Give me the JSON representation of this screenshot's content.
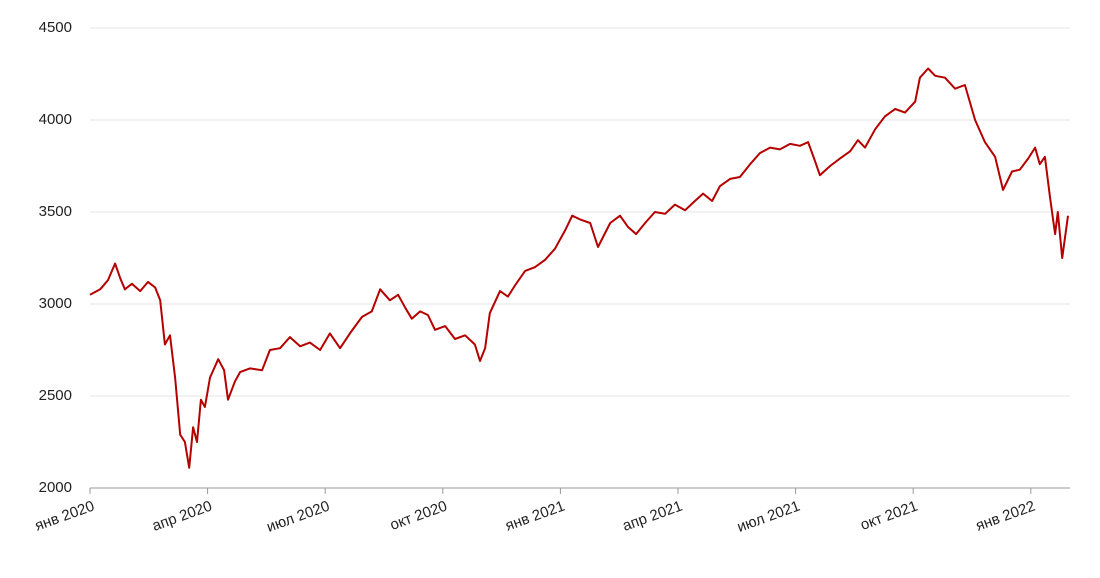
{
  "chart_data": {
    "type": "line",
    "x": [
      0,
      0.26,
      0.46,
      0.64,
      0.77,
      0.89,
      1.07,
      1.28,
      1.48,
      1.66,
      1.79,
      1.91,
      2.04,
      2.17,
      2.3,
      2.42,
      2.53,
      2.63,
      2.73,
      2.83,
      2.93,
      3.06,
      3.27,
      3.42,
      3.52,
      3.7,
      3.83,
      4.08,
      4.39,
      4.59,
      4.85,
      5.1,
      5.36,
      5.61,
      5.87,
      6.12,
      6.38,
      6.63,
      6.94,
      7.19,
      7.4,
      7.65,
      7.86,
      8.04,
      8.21,
      8.42,
      8.62,
      8.8,
      9.06,
      9.31,
      9.57,
      9.82,
      9.95,
      10.08,
      10.2,
      10.46,
      10.66,
      10.84,
      11.1,
      11.35,
      11.61,
      11.86,
      12.12,
      12.3,
      12.5,
      12.76,
      12.96,
      13.27,
      13.52,
      13.72,
      13.93,
      14.16,
      14.41,
      14.67,
      14.92,
      15.18,
      15.43,
      15.64,
      15.87,
      16.07,
      16.33,
      16.58,
      16.84,
      17.09,
      17.35,
      17.6,
      17.86,
      18.11,
      18.32,
      18.49,
      18.62,
      18.88,
      19.13,
      19.39,
      19.59,
      19.77,
      20.03,
      20.28,
      20.54,
      20.79,
      21.05,
      21.17,
      21.38,
      21.56,
      21.81,
      22.07,
      22.32,
      22.58,
      22.83,
      23.09,
      23.29,
      23.52,
      23.72,
      23.93,
      24.11,
      24.23,
      24.36,
      24.49,
      24.62,
      24.69,
      24.8,
      24.95
    ],
    "series": [
      {
        "color": "#b50000",
        "values": [
          3050,
          3080,
          3130,
          3220,
          3140,
          3080,
          3110,
          3070,
          3120,
          3090,
          3020,
          2780,
          2830,
          2600,
          2290,
          2250,
          2110,
          2330,
          2250,
          2480,
          2440,
          2600,
          2700,
          2640,
          2480,
          2580,
          2630,
          2650,
          2640,
          2750,
          2760,
          2820,
          2770,
          2790,
          2750,
          2840,
          2760,
          2840,
          2930,
          2960,
          3080,
          3020,
          3050,
          2980,
          2920,
          2960,
          2940,
          2860,
          2880,
          2810,
          2830,
          2780,
          2690,
          2760,
          2950,
          3070,
          3040,
          3100,
          3180,
          3200,
          3240,
          3300,
          3400,
          3480,
          3460,
          3440,
          3310,
          3440,
          3480,
          3420,
          3380,
          3440,
          3500,
          3490,
          3540,
          3510,
          3560,
          3600,
          3560,
          3640,
          3680,
          3690,
          3760,
          3820,
          3850,
          3840,
          3870,
          3860,
          3880,
          3780,
          3700,
          3750,
          3790,
          3830,
          3890,
          3850,
          3950,
          4020,
          4060,
          4040,
          4100,
          4230,
          4280,
          4240,
          4230,
          4170,
          4190,
          4000,
          3880,
          3800,
          3620,
          3720,
          3730,
          3790,
          3850,
          3760,
          3800,
          3580,
          3380,
          3500,
          3250,
          3480
        ]
      }
    ],
    "xlim": [
      0,
      25
    ],
    "xticks": [
      {
        "value": 0,
        "label": "янв 2020"
      },
      {
        "value": 3,
        "label": "апр 2020"
      },
      {
        "value": 6,
        "label": "июл 2020"
      },
      {
        "value": 9,
        "label": "окт 2020"
      },
      {
        "value": 12,
        "label": "янв 2021"
      },
      {
        "value": 15,
        "label": "апр 2021"
      },
      {
        "value": 18,
        "label": "июл 2021"
      },
      {
        "value": 21,
        "label": "окт 2021"
      },
      {
        "value": 24,
        "label": "янв 2022"
      }
    ],
    "ylim": [
      2000,
      4500
    ],
    "yticks": [
      2000,
      2500,
      3000,
      3500,
      4000,
      4500
    ],
    "grid": true
  }
}
